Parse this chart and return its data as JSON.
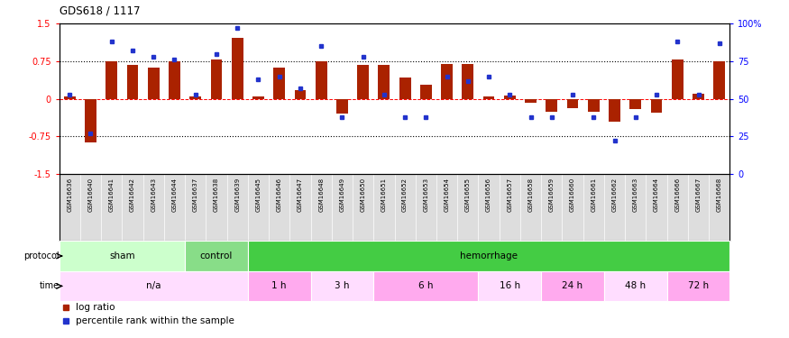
{
  "title": "GDS618 / 1117",
  "samples": [
    "GSM16636",
    "GSM16640",
    "GSM16641",
    "GSM16642",
    "GSM16643",
    "GSM16644",
    "GSM16637",
    "GSM16638",
    "GSM16639",
    "GSM16645",
    "GSM16646",
    "GSM16647",
    "GSM16648",
    "GSM16649",
    "GSM16650",
    "GSM16651",
    "GSM16652",
    "GSM16653",
    "GSM16654",
    "GSM16655",
    "GSM16656",
    "GSM16657",
    "GSM16658",
    "GSM16659",
    "GSM16660",
    "GSM16661",
    "GSM16662",
    "GSM16663",
    "GSM16664",
    "GSM16666",
    "GSM16667",
    "GSM16668"
  ],
  "log_ratio": [
    0.05,
    -0.87,
    0.75,
    0.68,
    0.62,
    0.75,
    0.04,
    0.78,
    1.22,
    0.04,
    0.62,
    0.18,
    0.75,
    -0.3,
    0.68,
    0.68,
    0.42,
    0.28,
    0.7,
    0.7,
    0.04,
    0.06,
    -0.08,
    -0.25,
    -0.18,
    -0.25,
    -0.45,
    -0.2,
    -0.28,
    0.78,
    0.1,
    0.75
  ],
  "percentile": [
    53,
    27,
    88,
    82,
    78,
    76,
    53,
    80,
    97,
    63,
    65,
    57,
    85,
    38,
    78,
    53,
    38,
    38,
    65,
    62,
    65,
    53,
    38,
    38,
    53,
    38,
    22,
    38,
    53,
    88,
    53,
    87
  ],
  "protocol_groups": [
    {
      "label": "sham",
      "start": 0,
      "end": 5,
      "color": "#ccffcc"
    },
    {
      "label": "control",
      "start": 6,
      "end": 8,
      "color": "#88dd88"
    },
    {
      "label": "hemorrhage",
      "start": 9,
      "end": 31,
      "color": "#44cc44"
    }
  ],
  "time_groups": [
    {
      "label": "n/a",
      "start": 0,
      "end": 8,
      "color": "#ffddff"
    },
    {
      "label": "1 h",
      "start": 9,
      "end": 11,
      "color": "#ffaaee"
    },
    {
      "label": "3 h",
      "start": 12,
      "end": 14,
      "color": "#ffddff"
    },
    {
      "label": "6 h",
      "start": 15,
      "end": 19,
      "color": "#ffaaee"
    },
    {
      "label": "16 h",
      "start": 20,
      "end": 22,
      "color": "#ffddff"
    },
    {
      "label": "24 h",
      "start": 23,
      "end": 25,
      "color": "#ffaaee"
    },
    {
      "label": "48 h",
      "start": 26,
      "end": 28,
      "color": "#ffddff"
    },
    {
      "label": "72 h",
      "start": 29,
      "end": 31,
      "color": "#ffaaee"
    }
  ],
  "bar_color": "#aa2200",
  "dot_color": "#2233cc",
  "ylim_left": [
    -1.5,
    1.5
  ],
  "ylim_right": [
    0,
    100
  ],
  "yticks_left": [
    -1.5,
    -0.75,
    0.0,
    0.75,
    1.5
  ],
  "ytick_labels_left": [
    "-1.5",
    "-0.75",
    "0",
    "0.75",
    "1.5"
  ],
  "yticks_right": [
    0,
    25,
    50,
    75,
    100
  ],
  "ytick_labels_right": [
    "0",
    "25",
    "50",
    "75",
    "100%"
  ],
  "background_color": "#ffffff",
  "label_area_color": "#dddddd"
}
